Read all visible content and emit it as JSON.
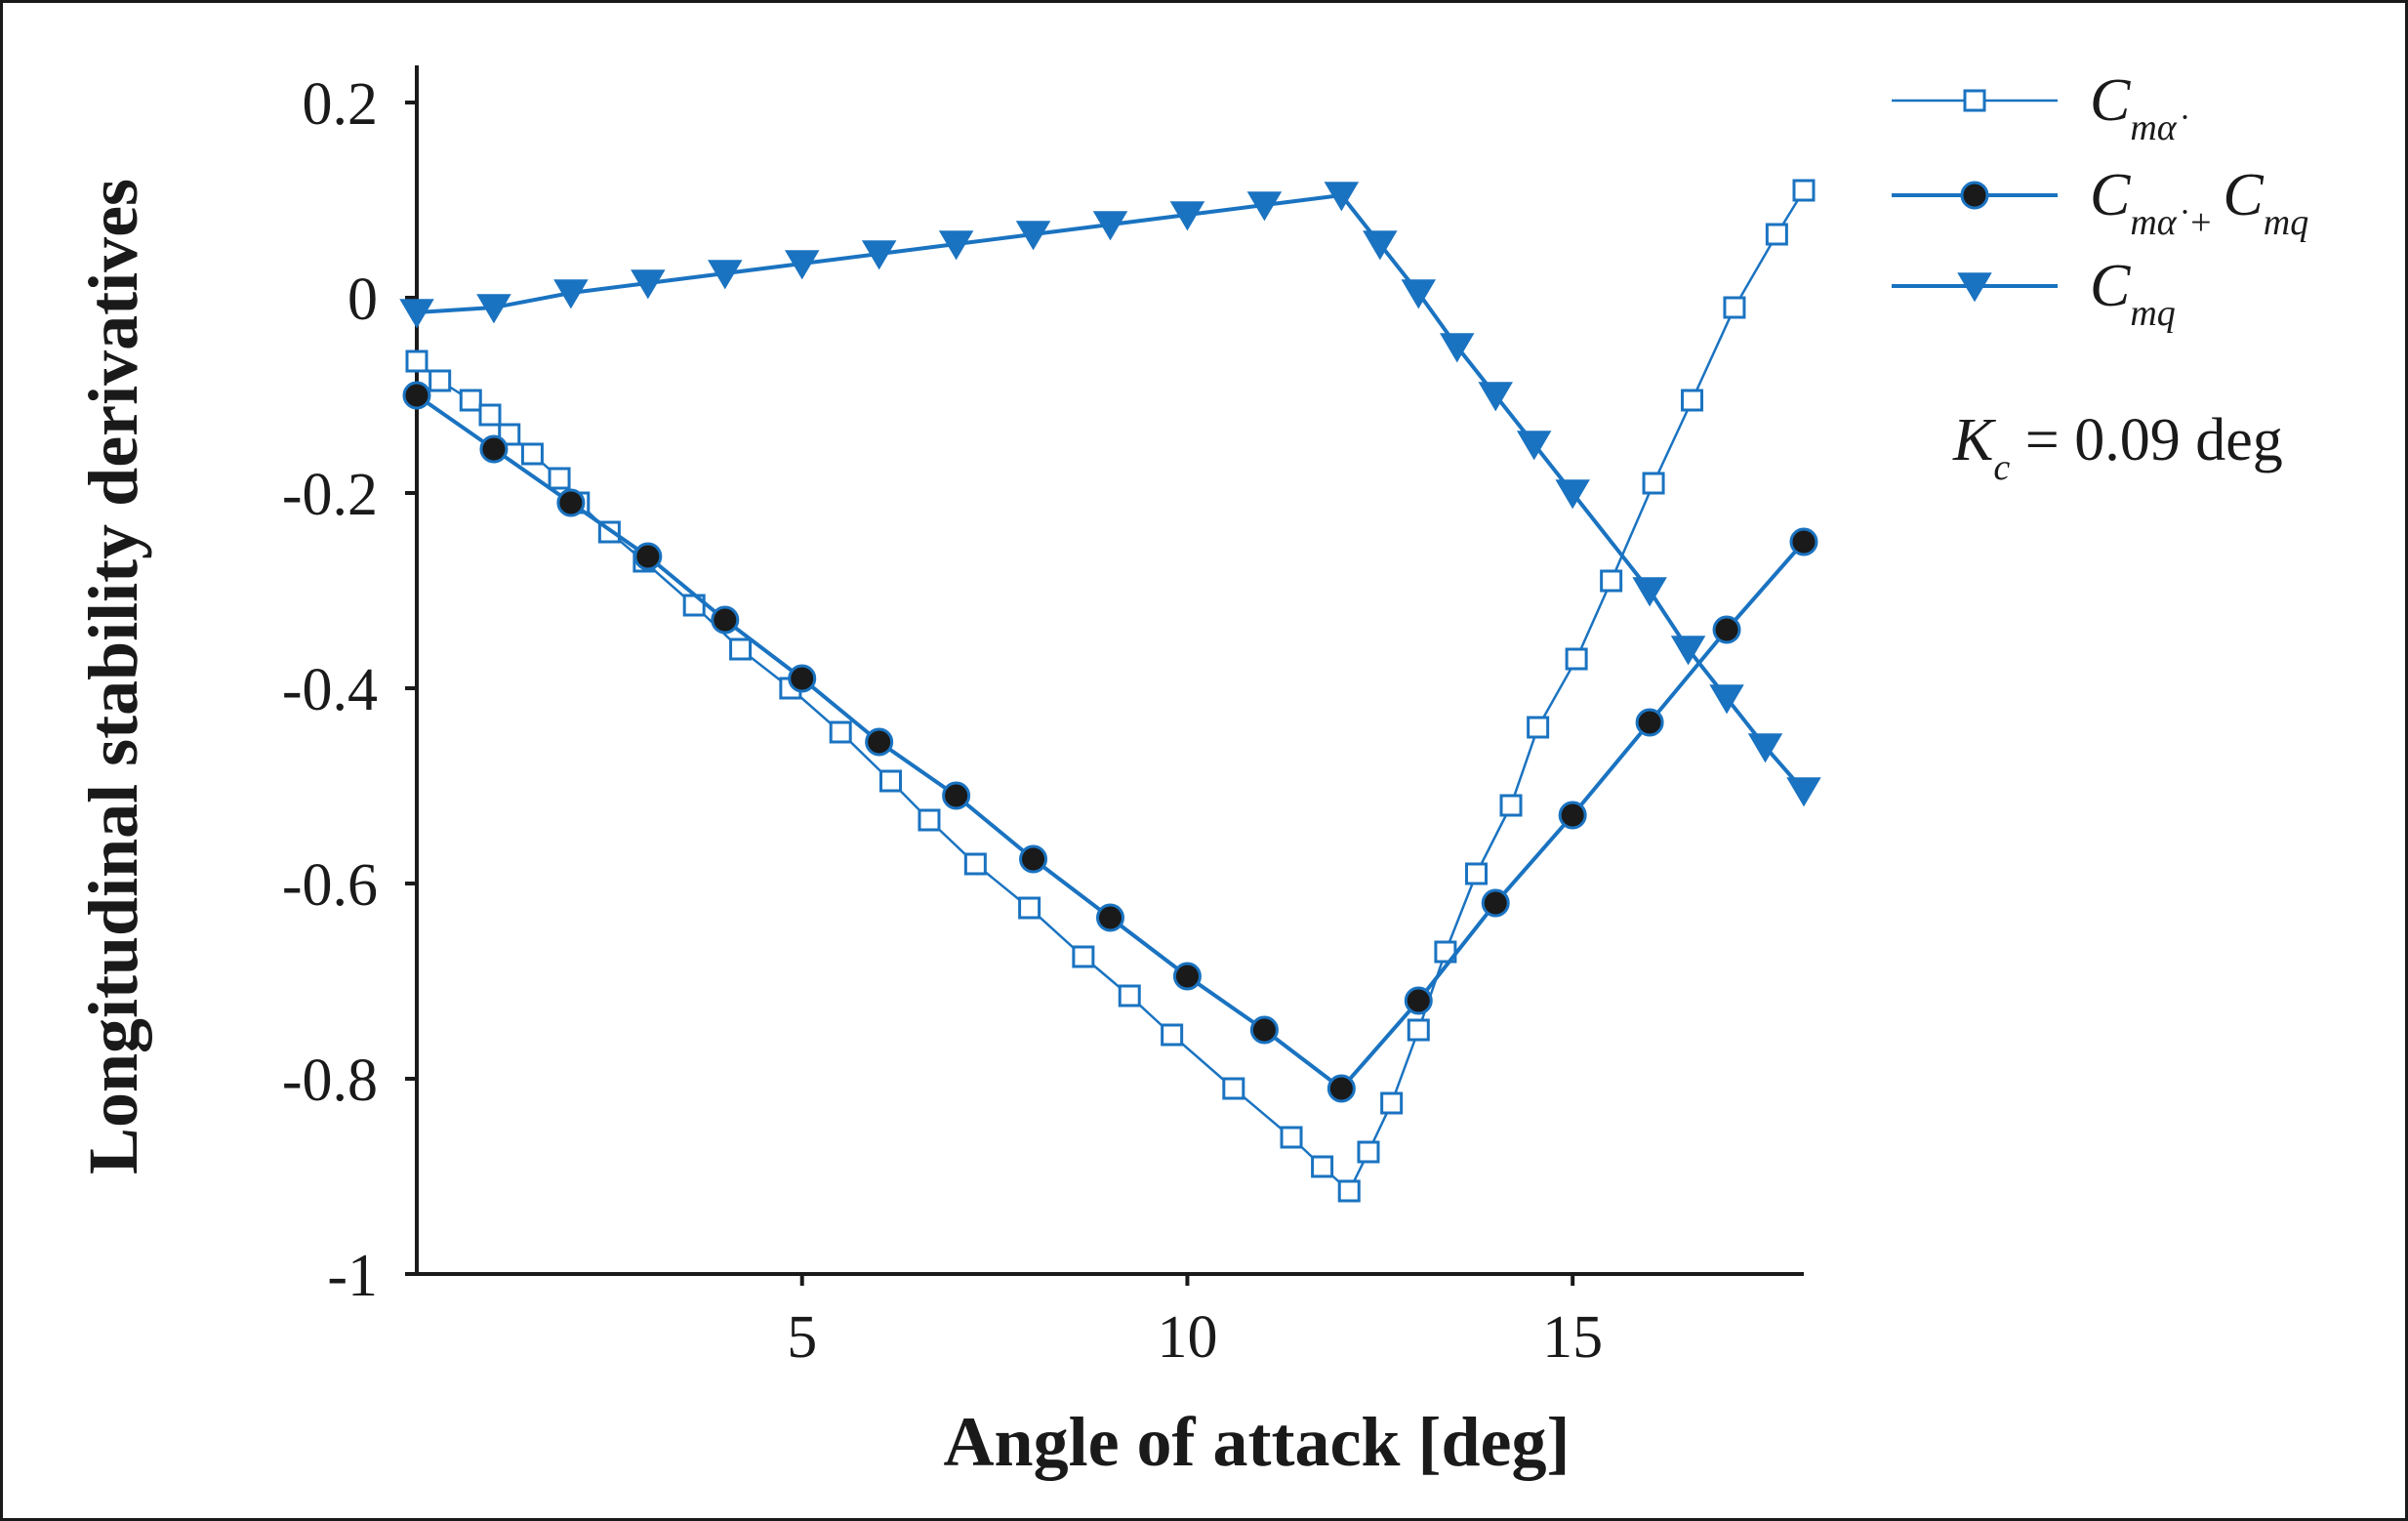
{
  "chart_data": {
    "type": "line",
    "xlabel": "Angle of attack [deg]",
    "ylabel": "Longitudinal stability derivatives",
    "xlim": [
      0,
      18
    ],
    "ylim": [
      -1,
      0.2
    ],
    "xticks": [
      5,
      10,
      15
    ],
    "xtick_labels": [
      "5",
      "10",
      "15"
    ],
    "yticks": [
      0.2,
      0,
      -0.2,
      -0.4,
      -0.6,
      -0.8,
      -1
    ],
    "ytick_labels": [
      "0.2",
      "0",
      "-0.2",
      "-0.4",
      "-0.6",
      "-0.8",
      "-1"
    ],
    "grid": false,
    "legend_position": "top-right",
    "annotation": {
      "main": "K",
      "sub": "c",
      "rest": " = 0.09 deg"
    },
    "series": [
      {
        "name": "C_mα̇",
        "label_main": "C",
        "label_sub": "mα̇",
        "color": "#1a73c1",
        "marker": "open-square",
        "x": [
          0,
          0.3,
          0.7,
          0.95,
          1.2,
          1.5,
          1.85,
          2.1,
          2.5,
          2.95,
          3.6,
          4.2,
          4.85,
          5.5,
          6.15,
          6.65,
          7.25,
          7.95,
          8.65,
          9.25,
          9.8,
          10.6,
          11.35,
          11.75,
          12.1,
          12.35,
          12.65,
          13.0,
          13.35,
          13.75,
          14.2,
          14.55,
          15.05,
          15.5,
          16.05,
          16.55,
          17.1,
          17.65,
          18.0
        ],
        "y": [
          -0.065,
          -0.085,
          -0.105,
          -0.12,
          -0.14,
          -0.16,
          -0.185,
          -0.21,
          -0.24,
          -0.27,
          -0.315,
          -0.36,
          -0.4,
          -0.445,
          -0.495,
          -0.535,
          -0.58,
          -0.625,
          -0.675,
          -0.715,
          -0.755,
          -0.81,
          -0.86,
          -0.89,
          -0.915,
          -0.875,
          -0.825,
          -0.75,
          -0.67,
          -0.59,
          -0.52,
          -0.44,
          -0.37,
          -0.29,
          -0.19,
          -0.105,
          -0.01,
          0.065,
          0.11
        ]
      },
      {
        "name": "C_mα̇ + C_mq",
        "label_main": "C",
        "label_sub": "mα̇",
        "label_plus": "+",
        "label_main2": "C",
        "label_sub2": "mq",
        "color": "#1a73c1",
        "marker": "filled-circle",
        "x": [
          0,
          1,
          2,
          3,
          4,
          5,
          6,
          7,
          8,
          9,
          10,
          11,
          12,
          13,
          14,
          15,
          16,
          17,
          18
        ],
        "y": [
          -0.1,
          -0.155,
          -0.21,
          -0.265,
          -0.33,
          -0.39,
          -0.455,
          -0.51,
          -0.575,
          -0.635,
          -0.695,
          -0.75,
          -0.81,
          -0.72,
          -0.62,
          -0.53,
          -0.435,
          -0.34,
          -0.25
        ]
      },
      {
        "name": "C_mq",
        "label_main": "C",
        "label_sub": "mq",
        "color": "#1a73c1",
        "marker": "filled-triangle-down",
        "x": [
          0,
          1,
          2,
          3,
          4,
          5,
          6,
          7,
          8,
          9,
          10,
          11,
          12,
          12.5,
          13,
          13.5,
          14,
          14.5,
          15,
          16,
          16.5,
          17,
          17.5,
          18
        ],
        "y": [
          -0.015,
          -0.01,
          0.005,
          0.015,
          0.025,
          0.035,
          0.045,
          0.055,
          0.065,
          0.075,
          0.085,
          0.095,
          0.105,
          0.055,
          0.005,
          -0.05,
          -0.1,
          -0.15,
          -0.2,
          -0.3,
          -0.36,
          -0.41,
          -0.46,
          -0.505
        ]
      }
    ]
  }
}
